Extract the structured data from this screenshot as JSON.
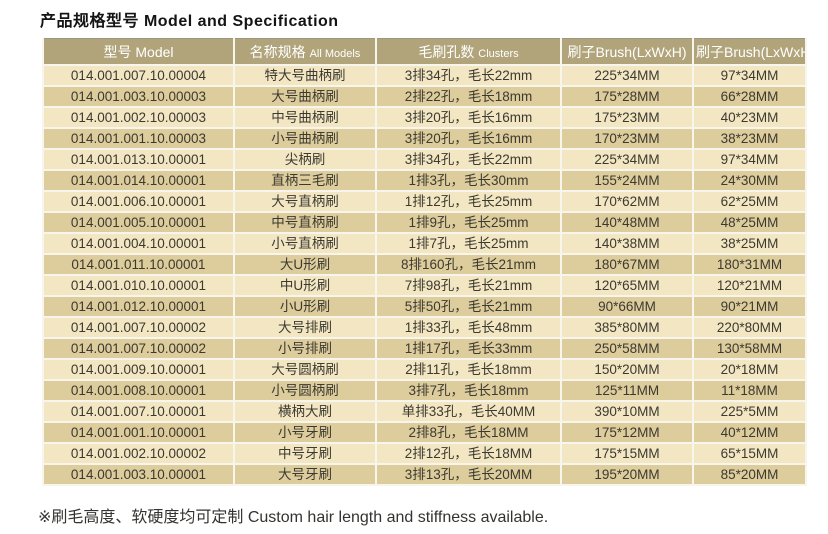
{
  "title": "产品规格型号 Model and Specification",
  "footnote": "※刷毛高度、软硬度均可定制 Custom hair length and stiffness available.",
  "colors": {
    "header_bg": "#b1a47b",
    "header_text": "#ffffff",
    "row_light": "#f2e6c3",
    "row_dark": "#ddcc9c",
    "cell_text": "#3c3a30",
    "grid_line": "#f8f6ec",
    "outer_border": "#9c9784"
  },
  "table": {
    "headers": [
      {
        "main": "型号 Model",
        "sub": ""
      },
      {
        "main": "名称规格",
        "sub": "All Models"
      },
      {
        "main": "毛刷孔数",
        "sub": "Clusters"
      },
      {
        "main": "刷子Brush(LxWxH)",
        "sub": ""
      },
      {
        "main": "刷子Brush(LxWxH)",
        "sub": ""
      }
    ],
    "rows": [
      [
        "014.001.007.10.00004",
        "特大号曲柄刷",
        "3排34孔，毛长22mm",
        "225*34MM",
        "97*34MM"
      ],
      [
        "014.001.003.10.00003",
        "大号曲柄刷",
        "2排22孔，毛长18mm",
        "175*28MM",
        "66*28MM"
      ],
      [
        "014.001.002.10.00003",
        "中号曲柄刷",
        "3排20孔，毛长16mm",
        "175*23MM",
        "40*23MM"
      ],
      [
        "014.001.001.10.00003",
        "小号曲柄刷",
        "3排20孔，毛长16mm",
        "170*23MM",
        "38*23MM"
      ],
      [
        "014.001.013.10.00001",
        "尖柄刷",
        "3排34孔，毛长22mm",
        "225*34MM",
        "97*34MM"
      ],
      [
        "014.001.014.10.00001",
        "直柄三毛刷",
        "1排3孔，毛长30mm",
        "155*24MM",
        "24*30MM"
      ],
      [
        "014.001.006.10.00001",
        "大号直柄刷",
        "1排12孔，毛长25mm",
        "170*62MM",
        "62*25MM"
      ],
      [
        "014.001.005.10.00001",
        "中号直柄刷",
        "1排9孔，毛长25mm",
        "140*48MM",
        "48*25MM"
      ],
      [
        "014.001.004.10.00001",
        "小号直柄刷",
        "1排7孔，毛长25mm",
        "140*38MM",
        "38*25MM"
      ],
      [
        "014.001.011.10.00001",
        "大U形刷",
        "8排160孔，毛长21mm",
        "180*67MM",
        "180*31MM"
      ],
      [
        "014.001.010.10.00001",
        "中U形刷",
        "7排98孔，毛长21mm",
        "120*65MM",
        "120*21MM"
      ],
      [
        "014.001.012.10.00001",
        "小U形刷",
        "5排50孔，毛长21mm",
        "90*66MM",
        "90*21MM"
      ],
      [
        "014.001.007.10.00002",
        "大号排刷",
        "1排33孔，毛长48mm",
        "385*80MM",
        "220*80MM"
      ],
      [
        "014.001.007.10.00002",
        "小号排刷",
        "1排17孔，毛长33mm",
        "250*58MM",
        "130*58MM"
      ],
      [
        "014.001.009.10.00001",
        "大号圆柄刷",
        "2排11孔，毛长18mm",
        "150*20MM",
        "20*18MM"
      ],
      [
        "014.001.008.10.00001",
        "小号圆柄刷",
        "3排7孔，毛长18mm",
        "125*11MM",
        "11*18MM"
      ],
      [
        "014.001.007.10.00001",
        "横柄大刷",
        "单排33孔，毛长40MM",
        "390*10MM",
        "225*5MM"
      ],
      [
        "014.001.001.10.00001",
        "小号牙刷",
        "2排8孔，毛长18MM",
        "175*12MM",
        "40*12MM"
      ],
      [
        "014.001.002.10.00002",
        "中号牙刷",
        "2排12孔，毛长18MM",
        "175*15MM",
        "65*15MM"
      ],
      [
        "014.001.003.10.00001",
        "大号牙刷",
        "3排13孔，毛长20MM",
        "195*20MM",
        "85*20MM"
      ]
    ]
  }
}
